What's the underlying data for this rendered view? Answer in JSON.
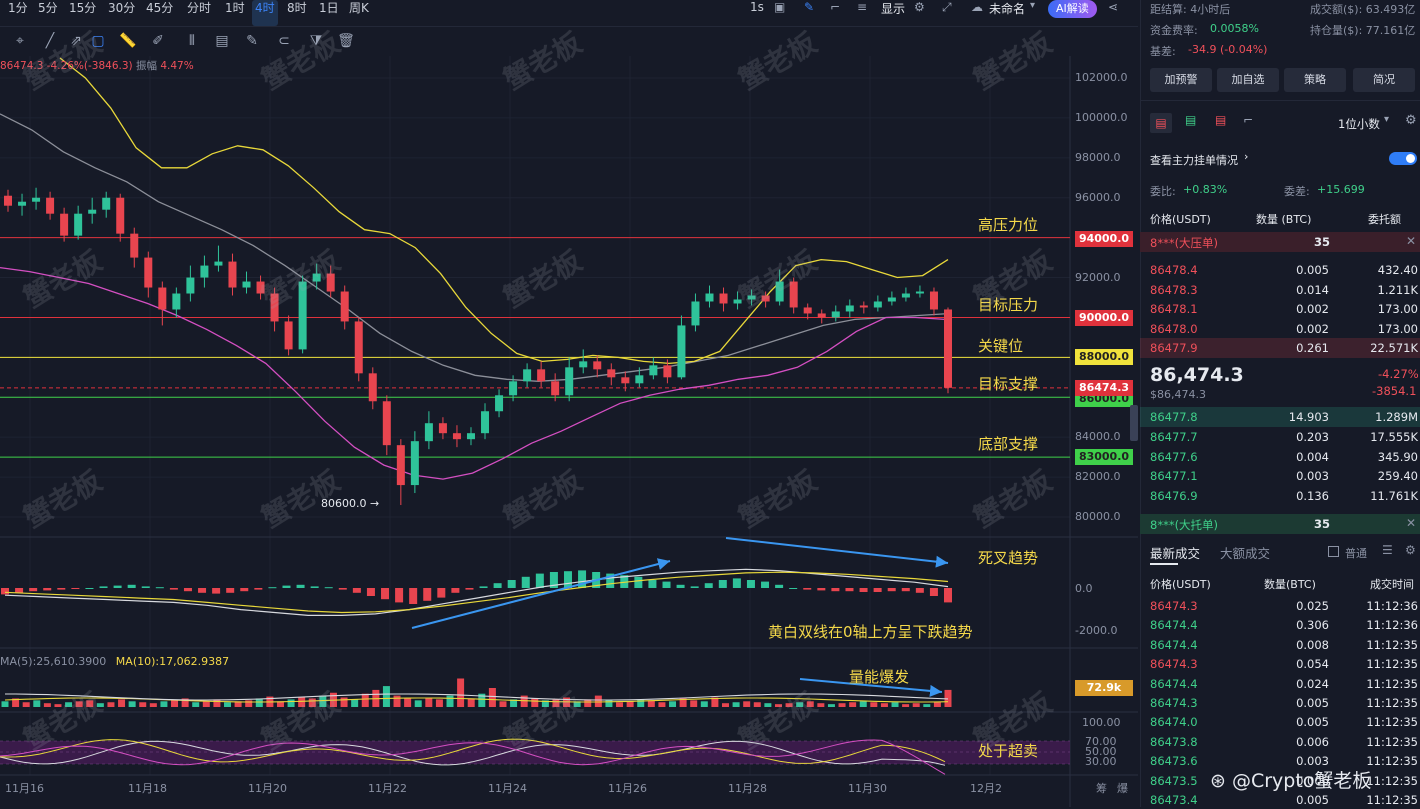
{
  "timeframes": [
    "1分",
    "5分",
    "15分",
    "30分",
    "45分",
    "分时",
    "1时",
    "4时",
    "8时",
    "1日",
    "周K"
  ],
  "active_timeframe": "4时",
  "topbar_right": {
    "interval": "1s",
    "display": "显示",
    "unnamed": "未命名",
    "ai_label": "AI解读"
  },
  "legend": {
    "price": "86474.3",
    "change": "-4.26%(-3846.3)",
    "amp_label": "振幅",
    "amp_value": "4.47%"
  },
  "chart_data": [
    {
      "type": "candlestick",
      "ylim": [
        79000,
        103000
      ],
      "y_ticks": [
        "102000.0",
        "100000.0",
        "98000.0",
        "96000.0",
        "94000.0",
        "92000.0",
        "90000.0",
        "88000.0",
        "86000.0",
        "84000.0",
        "82000.0",
        "80000.0"
      ],
      "x_ticks": [
        "11月16",
        "11月18",
        "11月20",
        "11月22",
        "11月24",
        "11月26",
        "11月28",
        "11月30",
        "12月2"
      ],
      "current_price": "86474.3",
      "low_marker": "80600.0",
      "levels": [
        {
          "value": 94000,
          "label": "94000.0",
          "annotation": "高压力位",
          "color": "#e0323c"
        },
        {
          "value": 90000,
          "label": "90000.0",
          "annotation": "目标压力",
          "color": "#e0323c"
        },
        {
          "value": 88000,
          "label": "88000.0",
          "annotation": "关键位",
          "color": "#f0e23c"
        },
        {
          "value": 86000,
          "label": "86000.0",
          "annotation": "目标支撑",
          "color": "#3fd04a"
        },
        {
          "value": 83000,
          "label": "83000.0",
          "annotation": "底部支撑",
          "color": "#3fd04a"
        }
      ],
      "candles": [
        [
          96100,
          95600,
          96400,
          95300
        ],
        [
          95600,
          95800,
          96200,
          95100
        ],
        [
          95800,
          96000,
          96500,
          95400
        ],
        [
          96000,
          95200,
          96300,
          94900
        ],
        [
          95200,
          94100,
          95500,
          93800
        ],
        [
          94100,
          95200,
          95600,
          93900
        ],
        [
          95200,
          95400,
          96000,
          94700
        ],
        [
          95400,
          96000,
          96300,
          95000
        ],
        [
          96000,
          94200,
          96200,
          93800
        ],
        [
          94200,
          93000,
          94500,
          92500
        ],
        [
          93000,
          91500,
          93300,
          91000
        ],
        [
          91500,
          90400,
          91800,
          89600
        ],
        [
          90400,
          91200,
          91500,
          90000
        ],
        [
          91200,
          92000,
          92600,
          90800
        ],
        [
          92000,
          92600,
          93100,
          91500
        ],
        [
          92600,
          92800,
          93600,
          92300
        ],
        [
          92800,
          91500,
          93200,
          91100
        ],
        [
          91500,
          91800,
          92300,
          91200
        ],
        [
          91800,
          91200,
          92100,
          90900
        ],
        [
          91200,
          89800,
          91500,
          89300
        ],
        [
          89800,
          88400,
          90100,
          88100
        ],
        [
          88400,
          91800,
          92100,
          88200
        ],
        [
          91800,
          92200,
          92700,
          91400
        ],
        [
          92200,
          91300,
          92600,
          91000
        ],
        [
          91300,
          89800,
          91600,
          89400
        ],
        [
          89800,
          87200,
          90000,
          86800
        ],
        [
          87200,
          85800,
          87500,
          85400
        ],
        [
          85800,
          83600,
          86100,
          83100
        ],
        [
          83600,
          81600,
          83900,
          80600
        ],
        [
          81600,
          83800,
          84300,
          81200
        ],
        [
          83800,
          84700,
          85300,
          83400
        ],
        [
          84700,
          84200,
          85000,
          83900
        ],
        [
          84200,
          83900,
          84600,
          83500
        ],
        [
          83900,
          84200,
          84500,
          83600
        ],
        [
          84200,
          85300,
          85700,
          83900
        ],
        [
          85300,
          86100,
          86400,
          85000
        ],
        [
          86100,
          86800,
          87100,
          85800
        ],
        [
          86800,
          87400,
          87700,
          86500
        ],
        [
          87400,
          86800,
          87800,
          86500
        ],
        [
          86800,
          86100,
          87200,
          85800
        ],
        [
          86100,
          87500,
          88000,
          85800
        ],
        [
          87500,
          87800,
          88400,
          87200
        ],
        [
          87800,
          87400,
          88100,
          87000
        ],
        [
          87400,
          87000,
          87700,
          86600
        ],
        [
          87000,
          86700,
          87300,
          86300
        ],
        [
          86700,
          87100,
          87500,
          86500
        ],
        [
          87100,
          87600,
          88000,
          86900
        ],
        [
          87600,
          87000,
          87900,
          86700
        ],
        [
          87000,
          89600,
          90100,
          86900
        ],
        [
          89600,
          90800,
          91200,
          89300
        ],
        [
          90800,
          91200,
          91600,
          90500
        ],
        [
          91200,
          90700,
          91500,
          90300
        ],
        [
          90700,
          90900,
          91300,
          90400
        ],
        [
          90900,
          91100,
          91400,
          90600
        ],
        [
          91100,
          90800,
          91300,
          90500
        ],
        [
          90800,
          91800,
          92400,
          90600
        ],
        [
          91800,
          90500,
          92000,
          90200
        ],
        [
          90500,
          90200,
          90700,
          89900
        ],
        [
          90200,
          90000,
          90400,
          89700
        ],
        [
          90000,
          90300,
          90600,
          89800
        ],
        [
          90300,
          90600,
          90900,
          90000
        ],
        [
          90600,
          90500,
          90800,
          90200
        ],
        [
          90500,
          90800,
          91100,
          90300
        ],
        [
          90800,
          91000,
          91300,
          90600
        ],
        [
          91000,
          91200,
          91500,
          90800
        ],
        [
          91200,
          91300,
          91600,
          91000
        ],
        [
          91300,
          90400,
          91500,
          90100
        ],
        [
          90400,
          86474,
          90500,
          86200
        ]
      ],
      "ma_yellow": [
        103000,
        102000,
        100500,
        98500,
        97500,
        97500,
        98200,
        98600,
        98400,
        97600,
        96500,
        95300,
        94400,
        94200,
        93500,
        92200,
        90500,
        89200,
        88200,
        87800,
        87900,
        88100,
        88000,
        87800,
        87700,
        87800,
        88300,
        89800,
        91300,
        92600,
        92900,
        92800,
        92400,
        92000,
        92100,
        92900
      ],
      "ma_gray": [
        100200,
        99400,
        98300,
        97500,
        96800,
        95800,
        95100,
        94400,
        93600,
        92600,
        91500,
        90400,
        89200,
        88300,
        87600,
        87100,
        86900,
        86800,
        86900,
        87100,
        87300,
        87500,
        87800,
        88100,
        88600,
        89100,
        89600,
        89900,
        90000,
        90100,
        90200
      ],
      "ma_pink": [
        92500,
        92300,
        92000,
        91700,
        91200,
        90700,
        90100,
        89400,
        88600,
        87700,
        86300,
        84800,
        83500,
        82600,
        82100,
        81900,
        82200,
        82900,
        83700,
        84300,
        85000,
        85700,
        86100,
        86400,
        86600,
        86900,
        87100,
        87500,
        88300,
        89300,
        90000,
        90000,
        89900
      ]
    },
    {
      "type": "bar",
      "name": "MACD",
      "y_ticks": [
        "0.0",
        "-2000.0"
      ],
      "annotation_1": "死叉趋势",
      "annotation_2": "黄白双线在0轴上方呈下跌趋势",
      "values": [
        -400,
        -300,
        -200,
        -150,
        -100,
        -50,
        0,
        100,
        150,
        200,
        100,
        50,
        -100,
        -200,
        -300,
        -350,
        -300,
        -200,
        -100,
        50,
        150,
        200,
        100,
        50,
        -100,
        -300,
        -500,
        -700,
        -900,
        -1000,
        -800,
        -600,
        -300,
        -100,
        100,
        300,
        500,
        700,
        900,
        1000,
        1050,
        1100,
        1000,
        900,
        800,
        700,
        500,
        400,
        200,
        100,
        300,
        500,
        600,
        500,
        400,
        200,
        0,
        -100,
        -150,
        -200,
        -200,
        -250,
        -250,
        -200,
        -200,
        -300,
        -500,
        -900
      ],
      "dif": [
        -500,
        -600,
        -700,
        -800,
        -900,
        -1000,
        -1200,
        -1500,
        -1700,
        -1900,
        -1900,
        -1800,
        -1500,
        -1100,
        -700,
        -300,
        100,
        400,
        700,
        900,
        1100,
        1200,
        1300,
        1200,
        1000,
        800,
        600,
        400,
        100
      ],
      "dea": [
        -300,
        -400,
        -500,
        -600,
        -700,
        -800,
        -1000,
        -1200,
        -1400,
        -1600,
        -1700,
        -1650,
        -1500,
        -1250,
        -950,
        -650,
        -300,
        0,
        300,
        550,
        750,
        900,
        1050,
        1100,
        1050,
        950,
        800,
        650,
        450
      ]
    },
    {
      "type": "bar",
      "name": "VOL",
      "ma5": "MA(5):25,610.3900",
      "ma10": "MA(10):17,062.9387",
      "current": "72.9k",
      "annotation": "量能爆发",
      "values": [
        6,
        9,
        5,
        7,
        4,
        3,
        5,
        6,
        7,
        4,
        5,
        8,
        6,
        5,
        4,
        6,
        7,
        9,
        5,
        6,
        8,
        5,
        6,
        7,
        9,
        11,
        6,
        8,
        10,
        9,
        12,
        15,
        10,
        8,
        14,
        18,
        22,
        12,
        9,
        7,
        10,
        8,
        12,
        30,
        9,
        14,
        20,
        6,
        8,
        12,
        9,
        7,
        8,
        10,
        6,
        8,
        12,
        7,
        5,
        6,
        8,
        7,
        5,
        6,
        9,
        7,
        6,
        10,
        4,
        5,
        6,
        5,
        4,
        3,
        4,
        5,
        6,
        4,
        3,
        4,
        5,
        6,
        5,
        4,
        5,
        3,
        4,
        3,
        5,
        18
      ]
    },
    {
      "type": "line",
      "name": "RSI/KDJ",
      "y_ticks": [
        "100.00",
        "70.00",
        "50.00",
        "30.00"
      ],
      "annotation": "处于超卖"
    }
  ],
  "right_panel": {
    "top_row1_left": "距结算: 4小时后",
    "top_row1_right": "成交额($): 63.493亿",
    "funding_label": "资金费率:",
    "funding_value": "0.0058%",
    "oi_label": "持仓量($): 77.161亿",
    "basis_label": "基差:",
    "basis_value": "-34.9 (-0.04%)",
    "buttons": [
      "加预警",
      "加自选",
      "策略",
      "简况"
    ],
    "decimal": "1位小数",
    "depth_title": "查看主力挂单情况",
    "ratio_label": "委比:",
    "ratio_value": "+0.83%",
    "diff_label": "委差:",
    "diff_value": "+15.699",
    "col_price": "价格(USDT)",
    "col_qty": "数量 (BTC)",
    "col_total": "委托额",
    "ask_banner": "8***(大压单)",
    "ask_banner_qty": "35",
    "asks": [
      [
        "86478.4",
        "0.005",
        "432.40"
      ],
      [
        "86478.3",
        "0.014",
        "1.211K"
      ],
      [
        "86478.1",
        "0.002",
        "173.00"
      ],
      [
        "86478.0",
        "0.002",
        "173.00"
      ],
      [
        "86477.9",
        "0.261",
        "22.571K"
      ]
    ],
    "last_price": "86,474.3",
    "last_price_usd": "$86,474.3",
    "last_change_pct": "-4.27%",
    "last_change_abs": "-3854.1",
    "bids": [
      [
        "86477.8",
        "14.903",
        "1.289M"
      ],
      [
        "86477.7",
        "0.203",
        "17.555K"
      ],
      [
        "86477.6",
        "0.004",
        "345.90"
      ],
      [
        "86477.1",
        "0.003",
        "259.40"
      ],
      [
        "86476.9",
        "0.136",
        "11.761K"
      ]
    ],
    "bid_banner": "8***(大托单)",
    "bid_banner_qty": "35",
    "trades_tab1": "最新成交",
    "trades_tab2": "大额成交",
    "trades_toggle": "普通",
    "trades_col_price": "价格(USDT)",
    "trades_col_qty": "数量(BTC)",
    "trades_col_time": "成交时间",
    "trades": [
      [
        "86474.3",
        "0.025",
        "11:12:36",
        "red"
      ],
      [
        "86474.4",
        "0.306",
        "11:12:36",
        "green"
      ],
      [
        "86474.4",
        "0.008",
        "11:12:35",
        "green"
      ],
      [
        "86474.3",
        "0.054",
        "11:12:35",
        "red"
      ],
      [
        "86474.4",
        "0.024",
        "11:12:35",
        "green"
      ],
      [
        "86474.3",
        "0.005",
        "11:12:35",
        "green"
      ],
      [
        "86474.0",
        "0.005",
        "11:12:35",
        "green"
      ],
      [
        "86473.8",
        "0.006",
        "11:12:35",
        "green"
      ],
      [
        "86473.6",
        "0.003",
        "11:12:35",
        "green"
      ],
      [
        "86473.5",
        "0.006",
        "11:12:35",
        "green"
      ],
      [
        "86473.4",
        "0.005",
        "11:12:35",
        "green"
      ]
    ]
  },
  "watermark": "蟹老板",
  "footer_brand": "Crypto蟹老板",
  "bottom_right": [
    "筹",
    "爆"
  ]
}
